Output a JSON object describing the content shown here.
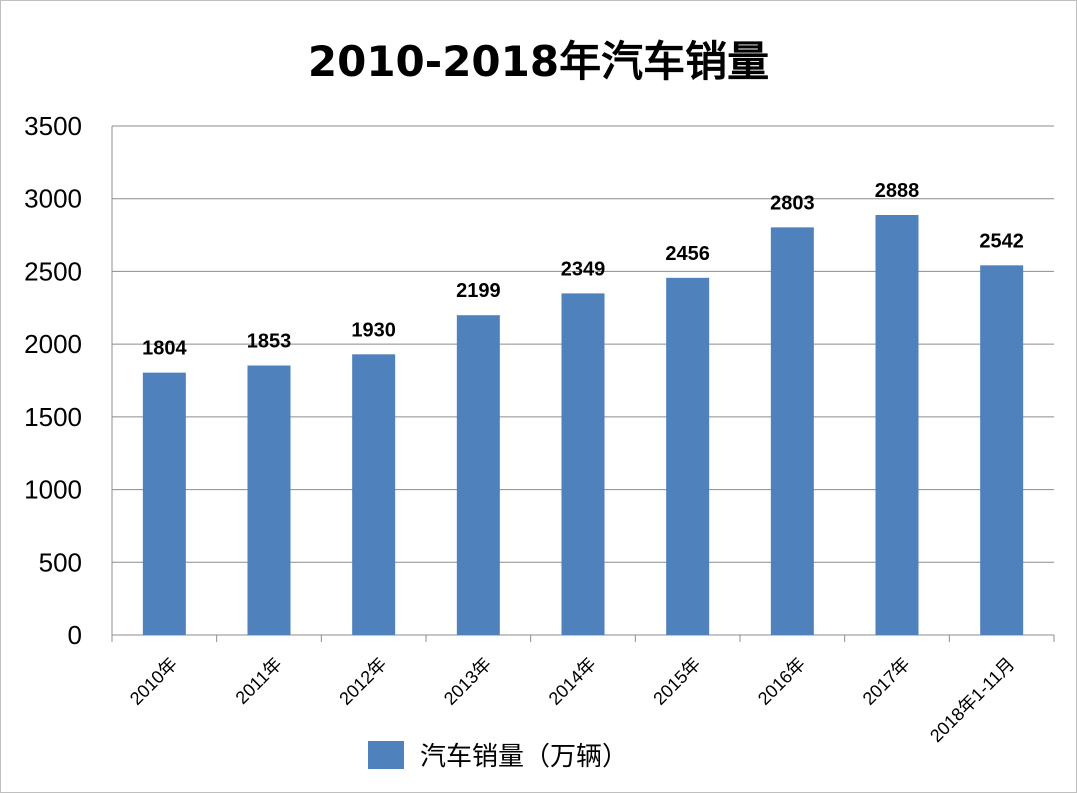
{
  "chart_data": {
    "type": "bar",
    "title": "2010-2018年汽车销量",
    "categories": [
      "2010年",
      "2011年",
      "2012年",
      "2013年",
      "2014年",
      "2015年",
      "2016年",
      "2017年",
      "2018年1-11月"
    ],
    "series": [
      {
        "name": "汽车销量（万辆）",
        "values": [
          1804,
          1853,
          1930,
          2199,
          2349,
          2456,
          2803,
          2888,
          2542
        ]
      }
    ],
    "data_labels": [
      "1804",
      "1853",
      "1930",
      "2199",
      "2349",
      "2456",
      "2803",
      "2888",
      "2542"
    ],
    "ylim": [
      0,
      3500
    ],
    "yticks": [
      "0",
      "500",
      "1000",
      "1500",
      "2000",
      "2500",
      "3000",
      "3500"
    ],
    "grid": true,
    "legend_position": "bottom",
    "bar_color": "#4f81bd"
  }
}
